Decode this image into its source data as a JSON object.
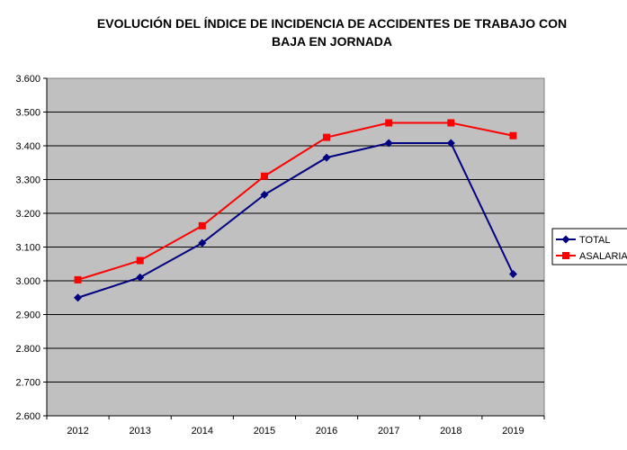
{
  "chart_data": {
    "type": "line",
    "title": "EVOLUCIÓN DEL ÍNDICE DE INCIDENCIA DE ACCIDENTES DE TRABAJO CON BAJA EN JORNADA",
    "title_lines": [
      "EVOLUCIÓN DEL ÍNDICE DE INCIDENCIA DE ACCIDENTES DE TRABAJO CON",
      "BAJA EN JORNADA"
    ],
    "xlabel": "",
    "ylabel": "",
    "categories": [
      "2012",
      "2013",
      "2014",
      "2015",
      "2016",
      "2017",
      "2018",
      "2019"
    ],
    "ylim": [
      2600,
      3600
    ],
    "yticks": [
      2600,
      2700,
      2800,
      2900,
      3000,
      3100,
      3200,
      3300,
      3400,
      3500,
      3600
    ],
    "ytick_labels": [
      "2.600",
      "2.700",
      "2.800",
      "2.900",
      "3.000",
      "3.100",
      "3.200",
      "3.300",
      "3.400",
      "3.500",
      "3.600"
    ],
    "grid": true,
    "legend_position": "right",
    "plot_background": "#c0c0c0",
    "series": [
      {
        "name": "TOTAL",
        "color": "#000080",
        "marker": "diamond",
        "values": [
          2950,
          3010,
          3112,
          3255,
          3365,
          3408,
          3408,
          3020
        ]
      },
      {
        "name": "ASALARIA",
        "color": "#ff0000",
        "marker": "square",
        "values": [
          3003,
          3060,
          3163,
          3310,
          3425,
          3468,
          3468,
          3430
        ]
      }
    ]
  }
}
